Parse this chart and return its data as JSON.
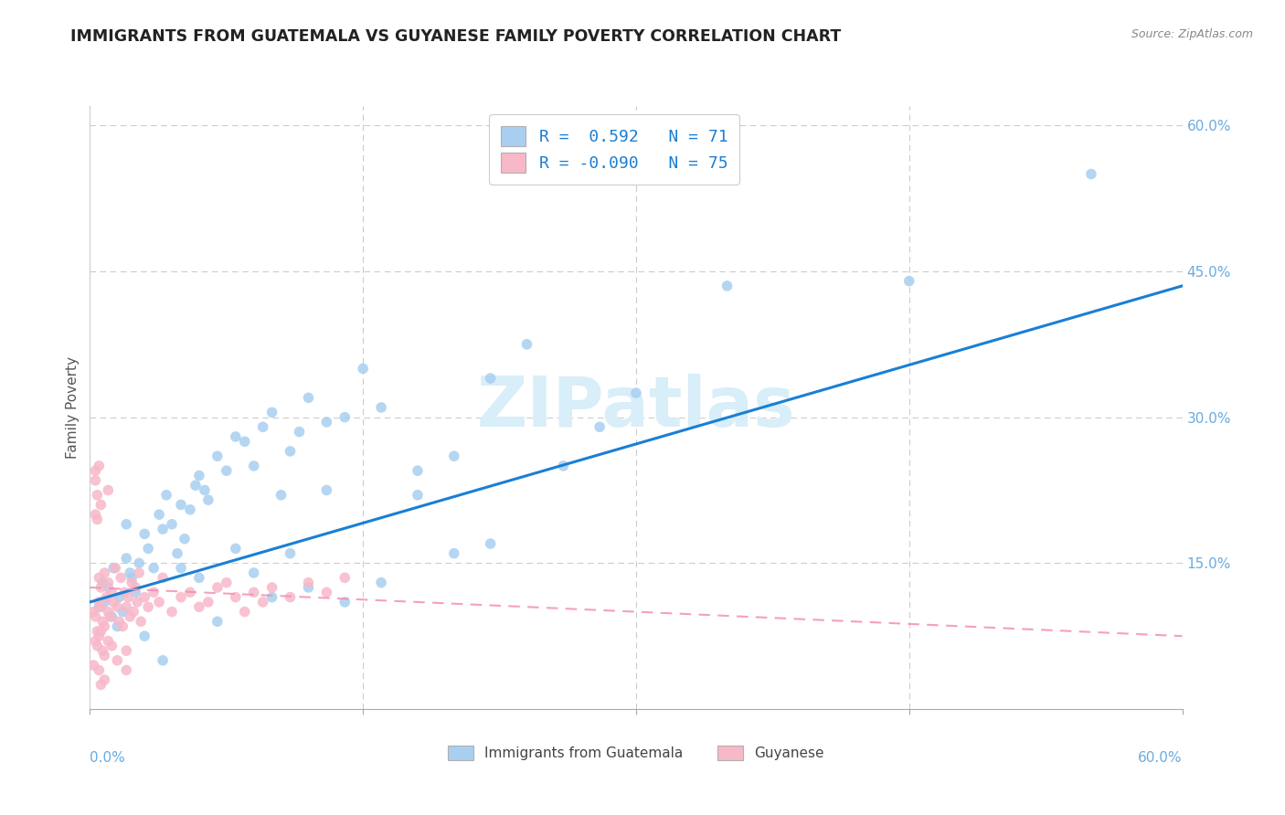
{
  "title": "IMMIGRANTS FROM GUATEMALA VS GUYANESE FAMILY POVERTY CORRELATION CHART",
  "source": "Source: ZipAtlas.com",
  "ylabel": "Family Poverty",
  "legend_label1": "Immigrants from Guatemala",
  "legend_label2": "Guyanese",
  "r1": 0.592,
  "n1": 71,
  "r2": -0.09,
  "n2": 75,
  "scatter1": [
    [
      0.5,
      10.5
    ],
    [
      0.7,
      13.0
    ],
    [
      0.8,
      11.0
    ],
    [
      1.0,
      12.5
    ],
    [
      1.2,
      9.5
    ],
    [
      1.3,
      14.5
    ],
    [
      1.5,
      8.5
    ],
    [
      1.6,
      11.5
    ],
    [
      1.8,
      10.0
    ],
    [
      2.0,
      15.5
    ],
    [
      2.2,
      14.0
    ],
    [
      2.3,
      13.5
    ],
    [
      2.5,
      12.0
    ],
    [
      2.7,
      15.0
    ],
    [
      3.0,
      18.0
    ],
    [
      3.2,
      16.5
    ],
    [
      3.5,
      14.5
    ],
    [
      3.8,
      20.0
    ],
    [
      4.0,
      18.5
    ],
    [
      4.2,
      22.0
    ],
    [
      4.5,
      19.0
    ],
    [
      4.8,
      16.0
    ],
    [
      5.0,
      21.0
    ],
    [
      5.2,
      17.5
    ],
    [
      5.5,
      20.5
    ],
    [
      5.8,
      23.0
    ],
    [
      6.0,
      24.0
    ],
    [
      6.3,
      22.5
    ],
    [
      6.5,
      21.5
    ],
    [
      7.0,
      26.0
    ],
    [
      7.5,
      24.5
    ],
    [
      8.0,
      28.0
    ],
    [
      8.5,
      27.5
    ],
    [
      9.0,
      25.0
    ],
    [
      9.5,
      29.0
    ],
    [
      10.0,
      30.5
    ],
    [
      10.5,
      22.0
    ],
    [
      11.0,
      26.5
    ],
    [
      11.5,
      28.5
    ],
    [
      12.0,
      32.0
    ],
    [
      13.0,
      29.5
    ],
    [
      14.0,
      30.0
    ],
    [
      15.0,
      35.0
    ],
    [
      16.0,
      31.0
    ],
    [
      18.0,
      24.5
    ],
    [
      20.0,
      26.0
    ],
    [
      22.0,
      34.0
    ],
    [
      24.0,
      37.5
    ],
    [
      26.0,
      25.0
    ],
    [
      28.0,
      29.0
    ],
    [
      30.0,
      32.5
    ],
    [
      10.0,
      11.5
    ],
    [
      12.0,
      12.5
    ],
    [
      14.0,
      11.0
    ],
    [
      16.0,
      13.0
    ],
    [
      7.0,
      9.0
    ],
    [
      4.0,
      5.0
    ],
    [
      3.0,
      7.5
    ],
    [
      6.0,
      13.5
    ],
    [
      8.0,
      16.5
    ],
    [
      5.0,
      14.5
    ],
    [
      9.0,
      14.0
    ],
    [
      2.0,
      19.0
    ],
    [
      11.0,
      16.0
    ],
    [
      13.0,
      22.5
    ],
    [
      18.0,
      22.0
    ],
    [
      20.0,
      16.0
    ],
    [
      22.0,
      17.0
    ],
    [
      35.0,
      43.5
    ],
    [
      45.0,
      44.0
    ],
    [
      55.0,
      55.0
    ]
  ],
  "scatter2": [
    [
      0.2,
      10.0
    ],
    [
      0.3,
      9.5
    ],
    [
      0.4,
      8.0
    ],
    [
      0.5,
      13.5
    ],
    [
      0.5,
      11.0
    ],
    [
      0.6,
      12.5
    ],
    [
      0.6,
      10.5
    ],
    [
      0.7,
      9.0
    ],
    [
      0.8,
      14.0
    ],
    [
      0.8,
      8.5
    ],
    [
      0.9,
      11.5
    ],
    [
      1.0,
      10.0
    ],
    [
      1.0,
      13.0
    ],
    [
      1.1,
      9.5
    ],
    [
      1.2,
      12.0
    ],
    [
      1.3,
      11.0
    ],
    [
      1.4,
      14.5
    ],
    [
      1.5,
      10.5
    ],
    [
      1.6,
      9.0
    ],
    [
      1.7,
      13.5
    ],
    [
      1.8,
      8.5
    ],
    [
      1.9,
      12.0
    ],
    [
      2.0,
      10.5
    ],
    [
      2.1,
      11.5
    ],
    [
      2.2,
      9.5
    ],
    [
      2.3,
      13.0
    ],
    [
      2.4,
      10.0
    ],
    [
      2.5,
      12.5
    ],
    [
      2.6,
      11.0
    ],
    [
      2.7,
      14.0
    ],
    [
      2.8,
      9.0
    ],
    [
      3.0,
      11.5
    ],
    [
      3.2,
      10.5
    ],
    [
      3.5,
      12.0
    ],
    [
      3.8,
      11.0
    ],
    [
      4.0,
      13.5
    ],
    [
      4.5,
      10.0
    ],
    [
      5.0,
      11.5
    ],
    [
      5.5,
      12.0
    ],
    [
      6.0,
      10.5
    ],
    [
      6.5,
      11.0
    ],
    [
      7.0,
      12.5
    ],
    [
      7.5,
      13.0
    ],
    [
      8.0,
      11.5
    ],
    [
      8.5,
      10.0
    ],
    [
      9.0,
      12.0
    ],
    [
      9.5,
      11.0
    ],
    [
      10.0,
      12.5
    ],
    [
      11.0,
      11.5
    ],
    [
      12.0,
      13.0
    ],
    [
      0.3,
      7.0
    ],
    [
      0.4,
      6.5
    ],
    [
      0.5,
      7.5
    ],
    [
      0.6,
      8.0
    ],
    [
      0.7,
      6.0
    ],
    [
      0.8,
      5.5
    ],
    [
      1.0,
      7.0
    ],
    [
      1.2,
      6.5
    ],
    [
      1.5,
      5.0
    ],
    [
      2.0,
      4.0
    ],
    [
      0.3,
      24.5
    ],
    [
      0.3,
      23.5
    ],
    [
      0.5,
      25.0
    ],
    [
      0.4,
      22.0
    ],
    [
      0.3,
      20.0
    ],
    [
      1.0,
      22.5
    ],
    [
      0.6,
      21.0
    ],
    [
      0.4,
      19.5
    ],
    [
      0.2,
      4.5
    ],
    [
      0.5,
      4.0
    ],
    [
      2.0,
      6.0
    ],
    [
      13.0,
      12.0
    ],
    [
      14.0,
      13.5
    ],
    [
      0.8,
      3.0
    ],
    [
      0.6,
      2.5
    ]
  ],
  "trend1_y_start": 11.0,
  "trend1_y_end": 43.5,
  "trend2_y_start": 12.5,
  "trend2_y_end": 7.5,
  "color1": "#a8cff0",
  "color2": "#f7b8c8",
  "trend1_color": "#1a7fd4",
  "trend2_color": "#f48fb1",
  "background_color": "#ffffff",
  "grid_color": "#cccccc",
  "watermark_color": "#d8eef8",
  "title_color": "#222222",
  "right_axis_color": "#6aabde",
  "ylim": [
    0,
    62
  ],
  "xlim": [
    0,
    60
  ],
  "marker_size": 70
}
